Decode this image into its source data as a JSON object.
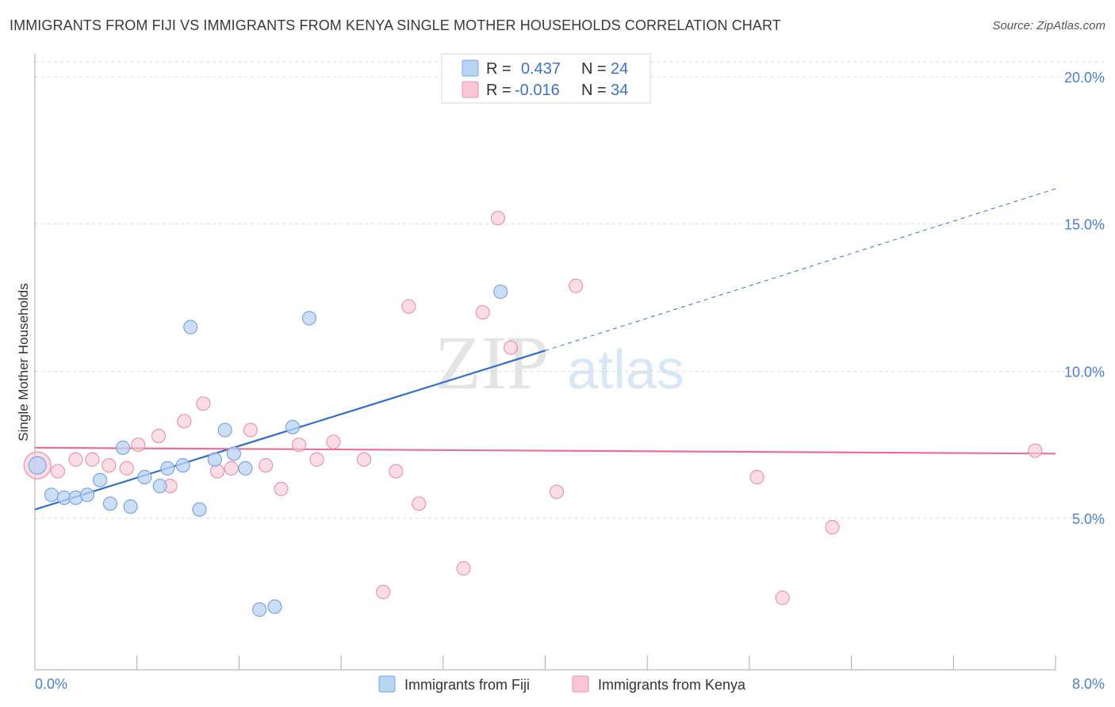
{
  "title": "IMMIGRANTS FROM FIJI VS IMMIGRANTS FROM KENYA SINGLE MOTHER HOUSEHOLDS CORRELATION CHART",
  "source": "Source: ZipAtlas.com",
  "watermark": {
    "zip": "ZIP",
    "atlas": "atlas"
  },
  "colors": {
    "fiji_fill": "#b9d3f3",
    "fiji_stroke": "#7aa6e0",
    "fiji_line": "#2d6fd1",
    "kenya_fill": "#f8c6d4",
    "kenya_stroke": "#ee93ad",
    "kenya_line": "#e8709a",
    "axis_text": "#4a7fd0",
    "grid": "#dcdcdc"
  },
  "legend": {
    "rows": [
      {
        "r_label": "R =",
        "r_value": "0.437",
        "n_label": "N =",
        "n_value": "24"
      },
      {
        "r_label": "R =",
        "r_value": "-0.016",
        "n_label": "N =",
        "n_value": "34"
      }
    ]
  },
  "chart_data": {
    "type": "scatter",
    "title": "IMMIGRANTS FROM FIJI VS IMMIGRANTS FROM KENYA SINGLE MOTHER HOUSEHOLDS CORRELATION CHART",
    "xlabel": "",
    "ylabel": "Single Mother Households",
    "xlim": [
      0,
      8
    ],
    "ylim": [
      0,
      20.5
    ],
    "x_tick_labels": [
      "0.0%",
      "8.0%"
    ],
    "y_ticks": [
      5,
      10,
      15,
      20
    ],
    "y_tick_labels": [
      "5.0%",
      "10.0%",
      "15.0%",
      "20.0%"
    ],
    "grid": true,
    "legend_position": "top-center",
    "series": [
      {
        "name": "Immigrants from Fiji",
        "points": [
          [
            0.02,
            6.8
          ],
          [
            0.13,
            5.8
          ],
          [
            0.23,
            5.7
          ],
          [
            0.32,
            5.7
          ],
          [
            0.41,
            5.8
          ],
          [
            0.51,
            6.3
          ],
          [
            0.59,
            5.5
          ],
          [
            0.69,
            7.4
          ],
          [
            0.75,
            5.4
          ],
          [
            0.86,
            6.4
          ],
          [
            0.98,
            6.1
          ],
          [
            1.04,
            6.7
          ],
          [
            1.16,
            6.8
          ],
          [
            1.22,
            11.5
          ],
          [
            1.29,
            5.3
          ],
          [
            1.41,
            7.0
          ],
          [
            1.49,
            8.0
          ],
          [
            1.56,
            7.2
          ],
          [
            1.65,
            6.7
          ],
          [
            1.76,
            1.9
          ],
          [
            1.88,
            2.0
          ],
          [
            2.02,
            8.1
          ],
          [
            2.15,
            11.8
          ],
          [
            3.65,
            12.7
          ]
        ],
        "trend": {
          "x0": 0.0,
          "y0": 5.3,
          "x1": 4.0,
          "y1": 10.7,
          "dash_to_x": 8.0,
          "dash_to_y": 16.2
        }
      },
      {
        "name": "Immigrants from Kenya",
        "points": [
          [
            0.02,
            6.8
          ],
          [
            0.18,
            6.6
          ],
          [
            0.32,
            7.0
          ],
          [
            0.45,
            7.0
          ],
          [
            0.58,
            6.8
          ],
          [
            0.72,
            6.7
          ],
          [
            0.81,
            7.5
          ],
          [
            0.97,
            7.8
          ],
          [
            1.06,
            6.1
          ],
          [
            1.17,
            8.3
          ],
          [
            1.32,
            8.9
          ],
          [
            1.43,
            6.6
          ],
          [
            1.54,
            6.7
          ],
          [
            1.69,
            8.0
          ],
          [
            1.81,
            6.8
          ],
          [
            1.93,
            6.0
          ],
          [
            2.07,
            7.5
          ],
          [
            2.21,
            7.0
          ],
          [
            2.34,
            7.6
          ],
          [
            2.58,
            7.0
          ],
          [
            2.73,
            2.5
          ],
          [
            2.83,
            6.6
          ],
          [
            2.93,
            12.2
          ],
          [
            3.01,
            5.5
          ],
          [
            3.36,
            3.3
          ],
          [
            3.51,
            12.0
          ],
          [
            3.63,
            15.2
          ],
          [
            3.73,
            10.8
          ],
          [
            4.09,
            5.9
          ],
          [
            4.24,
            12.9
          ],
          [
            5.66,
            6.4
          ],
          [
            5.86,
            2.3
          ],
          [
            6.25,
            4.7
          ],
          [
            7.84,
            7.3
          ]
        ],
        "trend": {
          "x0": 0.0,
          "y0": 7.4,
          "x1": 8.0,
          "y1": 7.2
        }
      }
    ]
  }
}
